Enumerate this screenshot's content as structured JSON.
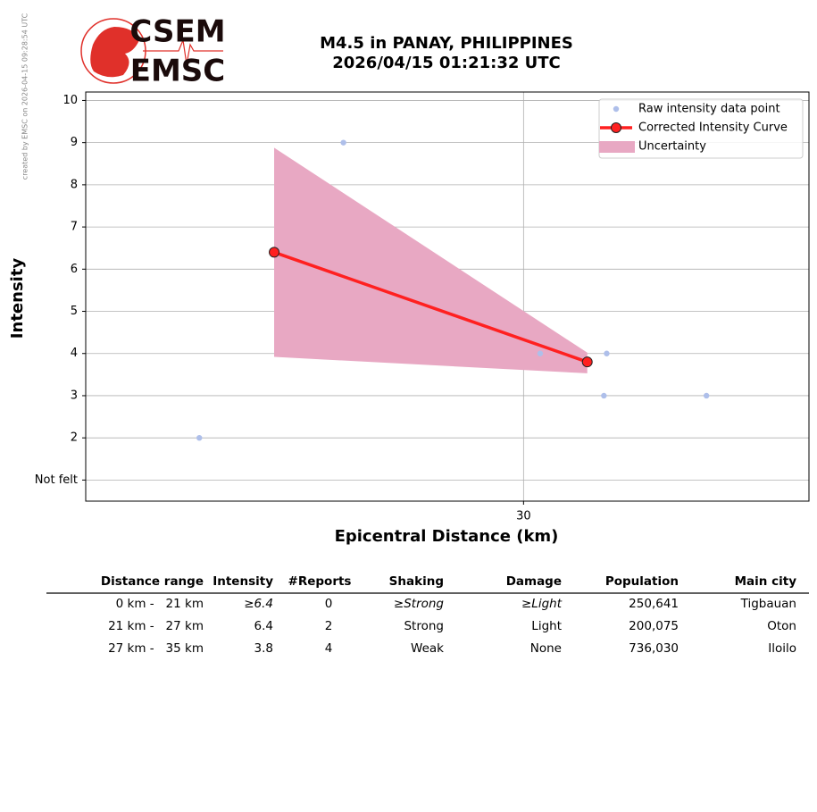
{
  "logo": {
    "top": "CSEM",
    "bottom": "EMSC"
  },
  "credit": "created by EMSC on 2026-04-15 09:28:54 UTC",
  "chart_data": {
    "type": "line",
    "title": "M4.5 in PANAY, PHILIPPINES",
    "subtitle": "2026/04/15 01:21:32 UTC",
    "x_label": "Epicentral Distance (km)",
    "y_label": "Intensity",
    "xlim": [
      14.2,
      40.3
    ],
    "xticks": [
      30
    ],
    "ylim": [
      0.5,
      10.2
    ],
    "yticks": [
      {
        "value": 1,
        "label": "Not felt"
      },
      2,
      3,
      4,
      5,
      6,
      7,
      8,
      9,
      10
    ],
    "grid": true,
    "legend": "upper right",
    "series": [
      {
        "name": "Raw intensity data point",
        "type": "scatter",
        "color": "#aebfea",
        "x": [
          18.3,
          23.5,
          30.6,
          32.9,
          33.0,
          36.6
        ],
        "values": [
          2,
          9,
          4,
          3,
          4,
          3
        ]
      },
      {
        "name": "Corrected Intensity Curve",
        "type": "line",
        "color": "#ff2020",
        "x": [
          21,
          32.3
        ],
        "values": [
          6.4,
          3.8
        ]
      },
      {
        "name": "Uncertainty",
        "type": "area",
        "color": "#e8a8c3",
        "x": [
          21,
          32.3
        ],
        "upper": [
          8.88,
          4.02
        ],
        "lower": [
          3.92,
          3.53
        ]
      }
    ]
  },
  "table": {
    "header": [
      "Distance range",
      "Intensity",
      "#Reports",
      "Shaking",
      "Damage",
      "Population",
      "Main city"
    ],
    "rows": [
      [
        "0 km -   21 km",
        "≥6.4",
        "0",
        "≥Strong",
        "≥Light",
        "250,641",
        "Tigbauan"
      ],
      [
        "21 km -   27 km",
        "6.4",
        "2",
        "Strong",
        "Light",
        "200,075",
        "Oton"
      ],
      [
        "27 km -   35 km",
        "3.8",
        "4",
        "Weak",
        "None",
        "736,030",
        "Iloilo"
      ]
    ]
  }
}
